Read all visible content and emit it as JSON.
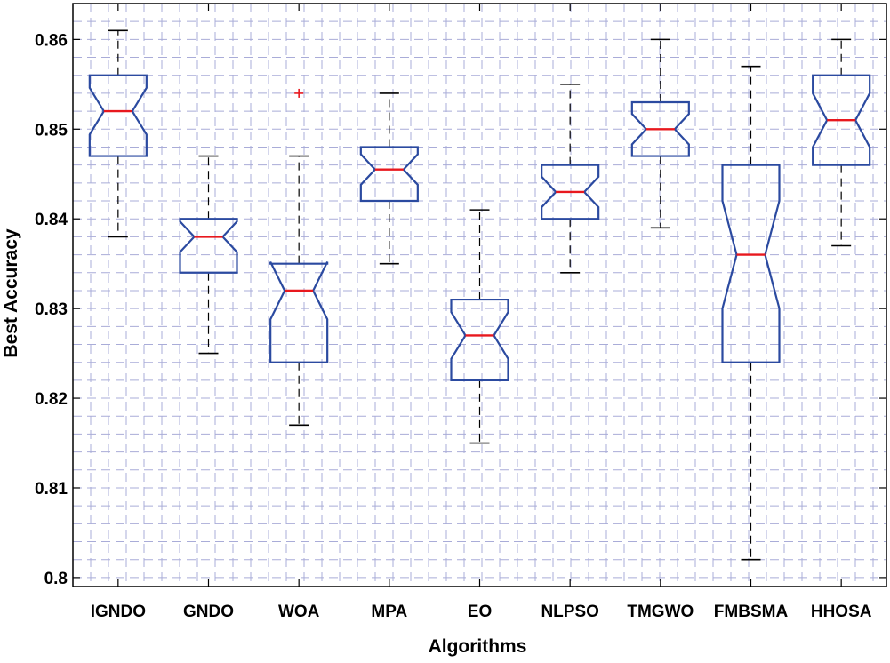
{
  "chart_data": {
    "type": "box",
    "title": "",
    "xlabel": "Algorithms",
    "ylabel": "Best Accuracy",
    "ylim": [
      0.799,
      0.864
    ],
    "yticks": [
      0.8,
      0.81,
      0.82,
      0.83,
      0.84,
      0.85,
      0.86
    ],
    "ytick_labels": [
      "0.8",
      "0.81",
      "0.82",
      "0.83",
      "0.84",
      "0.85",
      "0.86"
    ],
    "grid": true,
    "notched": true,
    "colors": {
      "box": "#2b4aa0",
      "median": "#e8181e",
      "whisker": "#000000",
      "outlier": "#e8181e",
      "grid": "#a9acd8"
    },
    "categories": [
      "IGNDO",
      "GNDO",
      "WOA",
      "MPA",
      "EO",
      "NLPSO",
      "TMGWO",
      "FMBSMA",
      "HHOSA"
    ],
    "boxes": [
      {
        "name": "IGNDO",
        "min": 0.838,
        "q1": 0.847,
        "median": 0.852,
        "q3": 0.856,
        "max": 0.861,
        "notch_low": 0.8494,
        "notch_high": 0.8546,
        "outliers": []
      },
      {
        "name": "GNDO",
        "min": 0.825,
        "q1": 0.834,
        "median": 0.838,
        "q3": 0.84,
        "max": 0.847,
        "notch_low": 0.8363,
        "notch_high": 0.8397,
        "outliers": []
      },
      {
        "name": "WOA",
        "min": 0.817,
        "q1": 0.824,
        "median": 0.832,
        "q3": 0.835,
        "max": 0.847,
        "notch_low": 0.8288,
        "notch_high": 0.8352,
        "outliers": [
          0.854
        ]
      },
      {
        "name": "MPA",
        "min": 0.835,
        "q1": 0.842,
        "median": 0.8455,
        "q3": 0.848,
        "max": 0.854,
        "notch_low": 0.8438,
        "notch_high": 0.8472,
        "outliers": []
      },
      {
        "name": "EO",
        "min": 0.815,
        "q1": 0.822,
        "median": 0.827,
        "q3": 0.831,
        "max": 0.841,
        "notch_low": 0.8244,
        "notch_high": 0.8296,
        "outliers": []
      },
      {
        "name": "NLPSO",
        "min": 0.834,
        "q1": 0.84,
        "median": 0.843,
        "q3": 0.846,
        "max": 0.855,
        "notch_low": 0.8413,
        "notch_high": 0.8447,
        "outliers": []
      },
      {
        "name": "TMGWO",
        "min": 0.839,
        "q1": 0.847,
        "median": 0.85,
        "q3": 0.853,
        "max": 0.86,
        "notch_low": 0.8483,
        "notch_high": 0.8517,
        "outliers": []
      },
      {
        "name": "FMBSMA",
        "min": 0.802,
        "q1": 0.824,
        "median": 0.836,
        "q3": 0.846,
        "max": 0.857,
        "notch_low": 0.83,
        "notch_high": 0.842,
        "outliers": []
      },
      {
        "name": "HHOSA",
        "min": 0.837,
        "q1": 0.846,
        "median": 0.851,
        "q3": 0.856,
        "max": 0.86,
        "notch_low": 0.848,
        "notch_high": 0.854,
        "outliers": []
      }
    ]
  }
}
